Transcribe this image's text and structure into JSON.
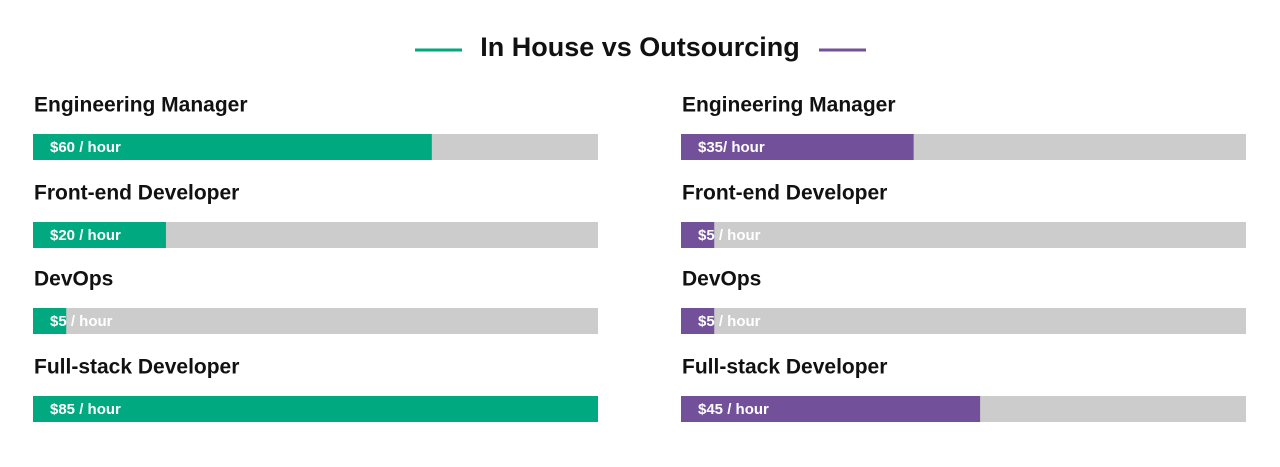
{
  "title": "In House vs Outsourcing",
  "chart_data": [
    {
      "type": "bar",
      "orientation": "horizontal",
      "color": "#00a97f",
      "categories": [
        "Engineering Manager",
        "Front-end Developer",
        "DevOps",
        "Full-stack Developer"
      ],
      "values": [
        60,
        20,
        5,
        85
      ],
      "value_labels": [
        "$60 / hour",
        "$20 / hour",
        "$5 / hour",
        "$85 / hour"
      ]
    },
    {
      "type": "bar",
      "orientation": "horizontal",
      "color": "#73509a",
      "categories": [
        "Engineering Manager",
        "Front-end Developer",
        "DevOps",
        "Full-stack Developer"
      ],
      "values": [
        35,
        5,
        5,
        45
      ],
      "value_labels": [
        "$35/ hour",
        "$5 / hour",
        "$5 / hour",
        "$45 / hour"
      ]
    }
  ]
}
